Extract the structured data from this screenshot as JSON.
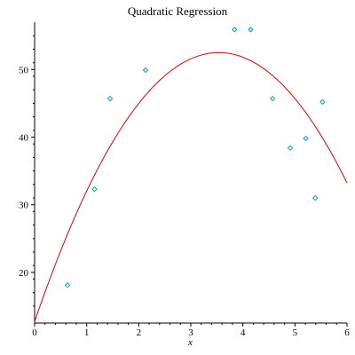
{
  "chart_data": {
    "type": "scatter",
    "title": "Quadratic Regression",
    "xlabel": "x",
    "ylabel": "",
    "xlim": [
      0,
      6
    ],
    "ylim": [
      12.5,
      57
    ],
    "x_ticks": [
      0,
      1,
      2,
      3,
      4,
      5,
      6
    ],
    "y_ticks": [
      20,
      30,
      40,
      50
    ],
    "grid": false,
    "legend": "none",
    "points": [
      {
        "x": 0.63,
        "y": 18.1
      },
      {
        "x": 1.15,
        "y": 32.3
      },
      {
        "x": 1.45,
        "y": 45.7
      },
      {
        "x": 2.13,
        "y": 49.9
      },
      {
        "x": 3.84,
        "y": 55.9
      },
      {
        "x": 4.15,
        "y": 55.9
      },
      {
        "x": 4.57,
        "y": 45.7
      },
      {
        "x": 4.91,
        "y": 38.4
      },
      {
        "x": 5.21,
        "y": 39.8
      },
      {
        "x": 5.39,
        "y": 31.0
      },
      {
        "x": 5.53,
        "y": 45.2
      }
    ],
    "fit": {
      "type": "quadratic",
      "coefficients": {
        "a": -3.18,
        "b": 22.5,
        "c": 12.7
      },
      "x_range": [
        0,
        6
      ]
    },
    "colors": {
      "points": "#00a0c8",
      "fit": "#e00000",
      "axes": "#000000"
    }
  }
}
